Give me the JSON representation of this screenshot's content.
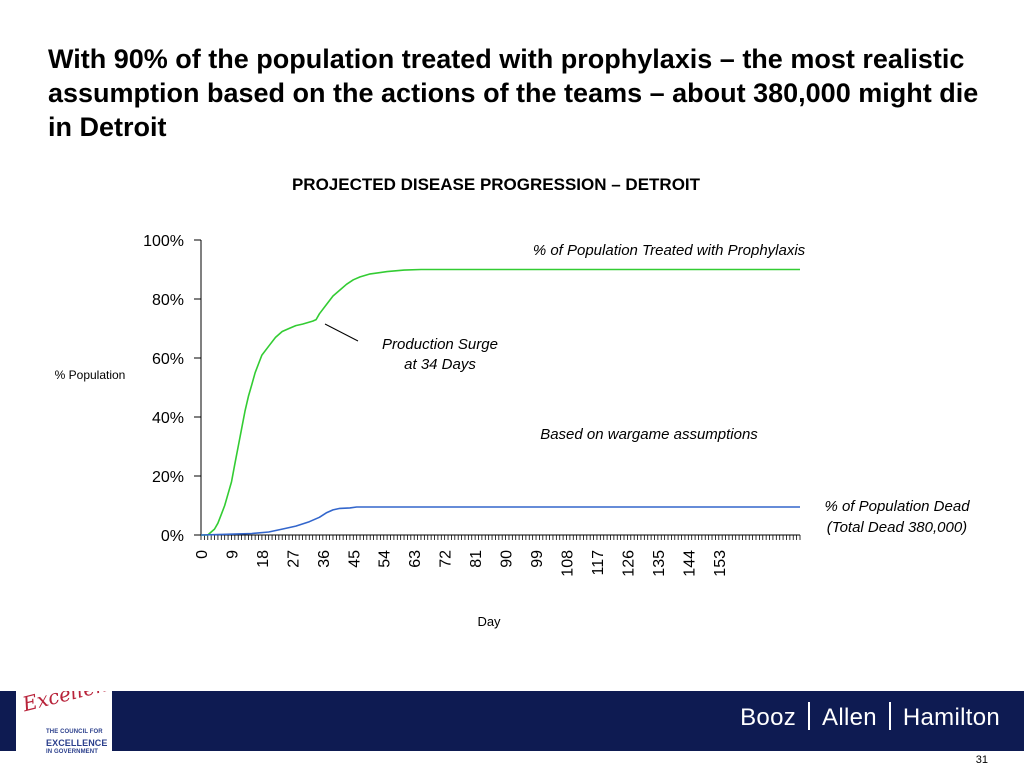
{
  "headline": "With 90% of the population treated with prophylaxis – the most realistic assumption based on the actions of the teams – about 380,000 might die in Detroit",
  "chart_data": {
    "type": "line",
    "title": "PROJECTED DISEASE PROGRESSION – DETROIT",
    "xlabel": "Day",
    "ylabel": "% Population",
    "xlim": [
      0,
      177
    ],
    "ylim": [
      0,
      100
    ],
    "x_tick_labels": [
      "0",
      "9",
      "18",
      "27",
      "36",
      "45",
      "54",
      "63",
      "72",
      "81",
      "90",
      "99",
      "108",
      "117",
      "126",
      "135",
      "144",
      "153"
    ],
    "y_tick_labels": [
      "0%",
      "20%",
      "40%",
      "60%",
      "80%",
      "100%"
    ],
    "y_ticks": [
      0,
      20,
      40,
      60,
      80,
      100
    ],
    "grid": false,
    "series": [
      {
        "name": "% of Population Treated with Prophylaxis",
        "color": "#33cc33",
        "points": [
          [
            0,
            0
          ],
          [
            2,
            0
          ],
          [
            3,
            1
          ],
          [
            4,
            2
          ],
          [
            5,
            4
          ],
          [
            6,
            7
          ],
          [
            7,
            10
          ],
          [
            8,
            14
          ],
          [
            9,
            18
          ],
          [
            10,
            24
          ],
          [
            11,
            30
          ],
          [
            12,
            36
          ],
          [
            13,
            42
          ],
          [
            14,
            47
          ],
          [
            15,
            51
          ],
          [
            16,
            55
          ],
          [
            17,
            58
          ],
          [
            18,
            61
          ],
          [
            20,
            64
          ],
          [
            22,
            67
          ],
          [
            24,
            69
          ],
          [
            26,
            70
          ],
          [
            28,
            71
          ],
          [
            30,
            71.5
          ],
          [
            33,
            72.5
          ],
          [
            34,
            73
          ],
          [
            35,
            75
          ],
          [
            37,
            78
          ],
          [
            39,
            81
          ],
          [
            41,
            83
          ],
          [
            43,
            85
          ],
          [
            45,
            86.5
          ],
          [
            47,
            87.5
          ],
          [
            50,
            88.5
          ],
          [
            55,
            89.3
          ],
          [
            60,
            89.8
          ],
          [
            65,
            90
          ],
          [
            80,
            90
          ],
          [
            120,
            90
          ],
          [
            160,
            90
          ],
          [
            177,
            90
          ]
        ]
      },
      {
        "name": "% of Population Dead",
        "color": "#3366cc",
        "points": [
          [
            0,
            0
          ],
          [
            10,
            0.3
          ],
          [
            15,
            0.5
          ],
          [
            20,
            1
          ],
          [
            24,
            2
          ],
          [
            28,
            3
          ],
          [
            32,
            4.5
          ],
          [
            35,
            6
          ],
          [
            37,
            7.5
          ],
          [
            39,
            8.5
          ],
          [
            41,
            9
          ],
          [
            44,
            9.2
          ],
          [
            46,
            9.5
          ],
          [
            60,
            9.5
          ],
          [
            100,
            9.5
          ],
          [
            140,
            9.5
          ],
          [
            177,
            9.5
          ]
        ]
      }
    ],
    "annotations": [
      {
        "id": "production_surge_l1",
        "text": "Production Surge"
      },
      {
        "id": "production_surge_l2",
        "text": "at 34 Days"
      },
      {
        "id": "wargame",
        "text": "Based on wargame assumptions"
      },
      {
        "id": "dead_total",
        "text": "(Total Dead 380,000)"
      }
    ]
  },
  "footer": {
    "logo_script": "Excellence",
    "logo_lines": [
      "THE COUNCIL FOR",
      "EXCELLENCE",
      "IN GOVERNMENT"
    ],
    "brand": [
      "Booz",
      "Allen",
      "Hamilton"
    ],
    "page_number": "31"
  }
}
